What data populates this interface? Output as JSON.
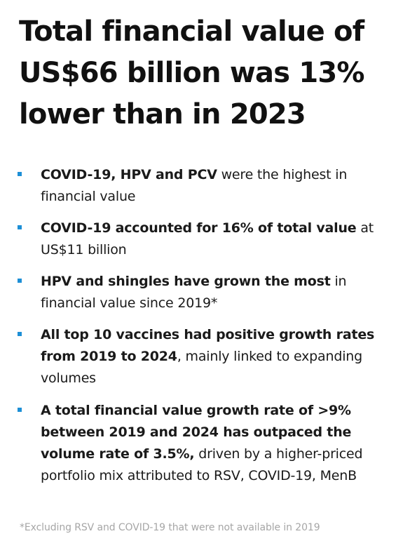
{
  "title": {
    "line1": "Total financial value of",
    "line2": "US$66 billion was 13%",
    "line3": "lower than in 2023"
  },
  "bullets": [
    {
      "bold": "COVID-19, HPV and PCV",
      "rest": " were the highest in financial value"
    },
    {
      "bold": "COVID-19 accounted for 16% of total value",
      "rest": " at US$11 billion"
    },
    {
      "bold": "HPV and shingles have grown the most",
      "rest": " in financial value since 2019*"
    },
    {
      "bold": "All top 10 vaccines had positive growth rates from 2019 to 2024",
      "rest": ", mainly linked to expanding volumes"
    },
    {
      "bold": "A total financial value growth rate of >9% between 2019 and 2024 has outpaced the volume rate of 3.5%,",
      "rest": " driven by a higher-priced portfolio mix attributed to RSV, COVID-19, MenB"
    }
  ],
  "footnote": "*Excluding RSV and COVID-19 that were not available in 2019",
  "colors": {
    "bullet_marker": "#1d8fd6",
    "text": "#1a1a1a",
    "footnote": "#a6a6a6"
  }
}
